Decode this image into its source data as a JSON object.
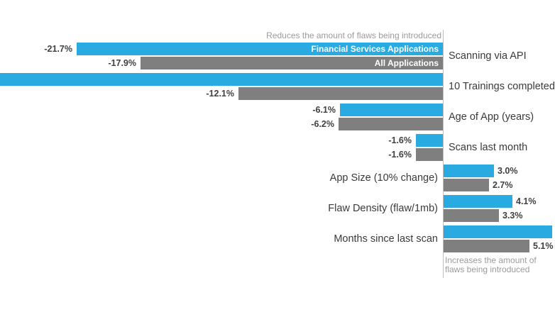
{
  "chart_data": {
    "type": "bar",
    "orientation": "horizontal",
    "title": "",
    "xlabel": "",
    "ylabel": "",
    "baseline": 0,
    "grid": false,
    "legend_position": "inside-first-bars",
    "axis_color": "#bdbdbd",
    "annotations": {
      "reduces": "Reduces the amount of flaws being introduced",
      "increases_line1": "Increases the amount of",
      "increases_line2": "flaws being introduced"
    },
    "series": [
      {
        "name": "Financial Services Applications",
        "color": "#29abe2"
      },
      {
        "name": "All Applications",
        "color": "#7f7f7f"
      }
    ],
    "categories": [
      "Scanning via API",
      "10 Trainings completed",
      "Age of App (years)",
      "Scans last month",
      "App Size (10% change)",
      "Flaw Density (flaw/1mb)",
      "Months since last scan"
    ],
    "rows": [
      {
        "category": "Scanning via API",
        "fs": {
          "value": -21.7,
          "label": "-21.7%",
          "clipped": false
        },
        "all": {
          "value": -17.9,
          "label": "-17.9%",
          "clipped": false
        }
      },
      {
        "category": "10 Trainings completed",
        "fs": {
          "value": null,
          "label": "",
          "clipped": true,
          "clip_side": "left"
        },
        "all": {
          "value": -12.1,
          "label": "-12.1%",
          "clipped": false
        }
      },
      {
        "category": "Age of App (years)",
        "fs": {
          "value": -6.1,
          "label": "-6.1%",
          "clipped": false
        },
        "all": {
          "value": -6.2,
          "label": "-6.2%",
          "clipped": false
        }
      },
      {
        "category": "Scans last month",
        "fs": {
          "value": -1.6,
          "label": "-1.6%",
          "clipped": false
        },
        "all": {
          "value": -1.6,
          "label": "-1.6%",
          "clipped": false
        }
      },
      {
        "category": "App Size (10% change)",
        "fs": {
          "value": 3.0,
          "label": "3.0%",
          "clipped": false
        },
        "all": {
          "value": 2.7,
          "label": "2.7%",
          "clipped": false
        }
      },
      {
        "category": "Flaw Density (flaw/1mb)",
        "fs": {
          "value": 4.1,
          "label": "4.1%",
          "clipped": false
        },
        "all": {
          "value": 3.3,
          "label": "3.3%",
          "clipped": false
        }
      },
      {
        "category": "Months since last scan",
        "fs": {
          "value": null,
          "label": "",
          "clipped": true,
          "clip_side": "right"
        },
        "all": {
          "value": 5.1,
          "label": "5.1%",
          "clipped": false
        }
      }
    ]
  }
}
